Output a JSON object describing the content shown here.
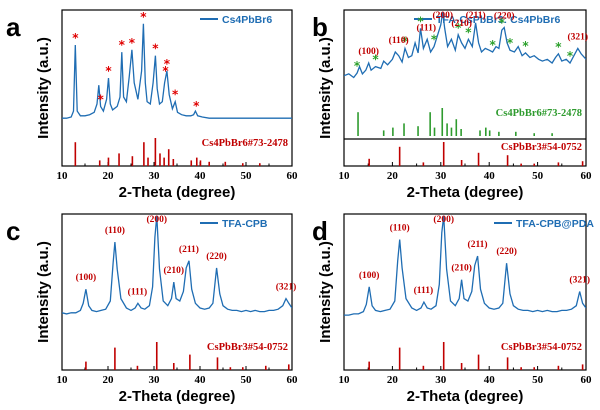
{
  "chart_data": [
    {
      "panel": "a",
      "type": "line",
      "xlabel": "2-Theta (degree)",
      "ylabel": "Intensity (a.u.)",
      "xlim": [
        10,
        60
      ],
      "xticks": [
        10,
        20,
        30,
        40,
        50,
        60
      ],
      "series": [
        {
          "name": "Cs4PbBr6",
          "color": "#1f6db3",
          "x": [
            10,
            11,
            12,
            12.5,
            12.9,
            13.3,
            14,
            15,
            16,
            17,
            17.6,
            18,
            18.4,
            19,
            19.7,
            20.1,
            20.5,
            21,
            22,
            22.6,
            23,
            23.4,
            24,
            24.6,
            25.2,
            25.7,
            26.5,
            27.3,
            27.7,
            28.1,
            28.5,
            29.2,
            29.8,
            30.3,
            30.7,
            31.2,
            31.8,
            32.3,
            32.8,
            33.3,
            34,
            34.6,
            35.1,
            36,
            37,
            38,
            38.6,
            39,
            39.5,
            40.5,
            42,
            44,
            46,
            48,
            50,
            52,
            54,
            56,
            58,
            60
          ],
          "y": [
            0.1,
            0.1,
            0.11,
            0.16,
            0.72,
            0.16,
            0.12,
            0.12,
            0.13,
            0.15,
            0.22,
            0.38,
            0.2,
            0.16,
            0.26,
            0.44,
            0.22,
            0.17,
            0.2,
            0.28,
            0.66,
            0.28,
            0.24,
            0.45,
            0.68,
            0.4,
            0.26,
            0.5,
            0.9,
            0.4,
            0.24,
            0.22,
            0.4,
            0.63,
            0.35,
            0.22,
            0.24,
            0.4,
            0.5,
            0.3,
            0.18,
            0.24,
            0.15,
            0.13,
            0.12,
            0.12,
            0.13,
            0.16,
            0.12,
            0.11,
            0.1,
            0.1,
            0.1,
            0.1,
            0.1,
            0.1,
            0.1,
            0.1,
            0.1,
            0.1
          ]
        }
      ],
      "star_markers": {
        "color": "#e00000",
        "x": [
          12.9,
          18.4,
          20.1,
          23.0,
          25.2,
          27.7,
          30.3,
          32.8,
          32.5,
          34.6,
          39.2
        ]
      },
      "reference": {
        "label": "Cs4PbBr6#73-2478",
        "color": "#c00000",
        "x": [
          12.9,
          18.2,
          20.1,
          22.4,
          25.3,
          27.8,
          28.7,
          30.3,
          31.3,
          32.2,
          33.2,
          34.2,
          38.1,
          39.3,
          40.1,
          42.0,
          45.5,
          49.3,
          53.0
        ],
        "intensity": [
          0.85,
          0.2,
          0.3,
          0.45,
          0.35,
          0.85,
          0.3,
          1.0,
          0.45,
          0.3,
          0.6,
          0.25,
          0.2,
          0.3,
          0.2,
          0.15,
          0.15,
          0.1,
          0.1
        ]
      }
    },
    {
      "panel": "b",
      "type": "line",
      "xlabel": "2-Theta (degree)",
      "ylabel": "Intensity (a.u.)",
      "xlim": [
        10,
        60
      ],
      "xticks": [
        10,
        20,
        30,
        40,
        50,
        60
      ],
      "series": [
        {
          "name": "TFA-CsPbBr3: Cs4PbBr6",
          "color": "#1f6db3",
          "x": [
            10,
            11,
            12,
            12.7,
            13.2,
            13.8,
            14.5,
            15.1,
            15.6,
            16.5,
            17.6,
            18.2,
            19,
            20,
            20.6,
            21.3,
            22,
            22.6,
            23.3,
            24,
            24.7,
            25.3,
            25.8,
            26.4,
            27.2,
            27.9,
            28.6,
            29.3,
            30,
            30.4,
            30.8,
            31.4,
            32.2,
            33,
            33.6,
            34.3,
            35,
            35.7,
            36.5,
            37.2,
            37.8,
            38.4,
            39.2,
            40,
            40.7,
            41.4,
            42,
            42.6,
            43.1,
            43.7,
            44.3,
            45.2,
            46,
            46.8,
            47.5,
            48.4,
            49.3,
            50.2,
            51,
            52,
            53,
            53.7,
            54.3,
            55,
            55.9,
            56.7,
            57.5,
            58.3,
            59,
            59.7,
            60
          ],
          "y": [
            0.3,
            0.32,
            0.28,
            0.33,
            0.4,
            0.32,
            0.36,
            0.44,
            0.36,
            0.4,
            0.38,
            0.46,
            0.42,
            0.48,
            0.56,
            0.52,
            0.45,
            0.6,
            0.5,
            0.52,
            0.66,
            0.55,
            0.82,
            0.6,
            0.7,
            0.56,
            0.62,
            0.74,
            0.86,
            1.0,
            0.82,
            0.62,
            0.7,
            0.58,
            0.75,
            0.66,
            0.6,
            0.7,
            0.62,
            0.88,
            0.66,
            0.56,
            0.6,
            0.58,
            0.56,
            0.62,
            0.6,
            0.8,
            0.83,
            0.66,
            0.58,
            0.56,
            0.62,
            0.52,
            0.55,
            0.5,
            0.52,
            0.48,
            0.46,
            0.48,
            0.44,
            0.5,
            0.54,
            0.46,
            0.48,
            0.44,
            0.52,
            0.6,
            0.54,
            0.5,
            0.48
          ]
        }
      ],
      "miller_labels": [
        {
          "x": 15.1,
          "text": "(100)"
        },
        {
          "x": 21.3,
          "text": "(110)"
        },
        {
          "x": 27.0,
          "text": "(111)"
        },
        {
          "x": 30.4,
          "text": "(200)"
        },
        {
          "x": 34.3,
          "text": "(210)"
        },
        {
          "x": 37.2,
          "text": "(211)"
        },
        {
          "x": 43.1,
          "text": "(220)"
        },
        {
          "x": 58.3,
          "text": "(321)"
        }
      ],
      "star_markers": {
        "color": "#2ca02c",
        "x": [
          12.7,
          16.5,
          22.6,
          25.8,
          28.6,
          33.6,
          35.7,
          40.7,
          42.6,
          44.3,
          47.5,
          54.3,
          56.7
        ]
      },
      "reference": [
        {
          "label": "Cs4PbBr6#73-2478",
          "color": "#2e9b2e",
          "x": [
            12.9,
            18.2,
            20.1,
            22.4,
            25.3,
            27.8,
            28.7,
            30.3,
            31.3,
            32.2,
            33.2,
            34.2,
            38.1,
            39.3,
            40.1,
            42.0,
            45.5,
            49.3,
            53.0
          ],
          "intensity": [
            0.85,
            0.2,
            0.3,
            0.45,
            0.35,
            0.85,
            0.3,
            1.0,
            0.45,
            0.3,
            0.6,
            0.25,
            0.2,
            0.3,
            0.2,
            0.15,
            0.15,
            0.1,
            0.1
          ]
        },
        {
          "label": "CsPbBr3#54-0752",
          "color": "#c00000",
          "x": [
            15.2,
            21.5,
            26.4,
            30.6,
            34.3,
            37.8,
            43.8,
            46.6,
            49.3,
            54.3,
            59.3
          ],
          "intensity": [
            0.3,
            0.8,
            0.15,
            1.0,
            0.25,
            0.55,
            0.45,
            0.1,
            0.1,
            0.15,
            0.2
          ]
        }
      ]
    },
    {
      "panel": "c",
      "type": "line",
      "xlabel": "2-Theta (degree)",
      "ylabel": "Intensity (a.u.)",
      "xlim": [
        10,
        60
      ],
      "xticks": [
        10,
        20,
        30,
        40,
        50,
        60
      ],
      "series": [
        {
          "name": "TFA-CPB",
          "color": "#1f6db3",
          "x": [
            10,
            11,
            12,
            13,
            14,
            14.6,
            15.2,
            15.8,
            16.5,
            17.5,
            18.5,
            19.5,
            20.5,
            21.1,
            21.5,
            22,
            22.8,
            24,
            25,
            25.9,
            26.5,
            27.2,
            28,
            29,
            29.7,
            30.2,
            30.6,
            31.2,
            32,
            33,
            33.8,
            34.3,
            34.8,
            35.6,
            36.4,
            37,
            37.6,
            38.2,
            39,
            40,
            41,
            42,
            42.8,
            43.6,
            44.3,
            45,
            46,
            47,
            48,
            49,
            50,
            51,
            52,
            53,
            54,
            55,
            56,
            57,
            58,
            58.7,
            59.3,
            60
          ],
          "y": [
            0.18,
            0.17,
            0.18,
            0.18,
            0.2,
            0.26,
            0.38,
            0.24,
            0.2,
            0.19,
            0.2,
            0.21,
            0.28,
            0.6,
            0.78,
            0.55,
            0.3,
            0.22,
            0.2,
            0.22,
            0.26,
            0.22,
            0.21,
            0.24,
            0.4,
            0.82,
            1.0,
            0.55,
            0.28,
            0.24,
            0.3,
            0.44,
            0.3,
            0.28,
            0.36,
            0.56,
            0.62,
            0.38,
            0.26,
            0.22,
            0.21,
            0.22,
            0.26,
            0.56,
            0.34,
            0.24,
            0.21,
            0.2,
            0.2,
            0.19,
            0.2,
            0.19,
            0.2,
            0.19,
            0.19,
            0.2,
            0.2,
            0.21,
            0.24,
            0.3,
            0.26,
            0.22
          ]
        }
      ],
      "miller_labels": [
        {
          "x": 15.2,
          "text": "(100)"
        },
        {
          "x": 21.5,
          "text": "(110)"
        },
        {
          "x": 26.4,
          "text": "(111)"
        },
        {
          "x": 30.6,
          "text": "(200)"
        },
        {
          "x": 34.3,
          "text": "(210)"
        },
        {
          "x": 37.6,
          "text": "(211)"
        },
        {
          "x": 43.6,
          "text": "(220)"
        },
        {
          "x": 58.7,
          "text": "(321)"
        }
      ],
      "reference": {
        "label": "CsPbBr3#54-0752",
        "color": "#c00000",
        "x": [
          15.2,
          21.5,
          26.4,
          30.6,
          34.3,
          37.8,
          43.8,
          46.6,
          49.3,
          54.3,
          59.3
        ],
        "intensity": [
          0.3,
          0.8,
          0.15,
          1.0,
          0.25,
          0.55,
          0.45,
          0.1,
          0.1,
          0.15,
          0.2
        ]
      }
    },
    {
      "panel": "d",
      "type": "line",
      "xlabel": "2-Theta (degree)",
      "ylabel": "Intensity (a.u.)",
      "xlim": [
        10,
        60
      ],
      "xticks": [
        10,
        20,
        30,
        40,
        50,
        60
      ],
      "series": [
        {
          "name": "TFA-CPB@PDA",
          "color": "#1f6db3",
          "x": [
            10,
            11,
            12,
            13,
            14,
            14.6,
            15.2,
            15.8,
            16.5,
            17.5,
            18.5,
            19.5,
            20.5,
            21.1,
            21.5,
            22,
            22.8,
            24,
            25,
            25.9,
            26.5,
            27.2,
            28,
            29,
            29.7,
            30.2,
            30.6,
            31.2,
            32,
            33,
            33.8,
            34.3,
            34.8,
            35.6,
            36.4,
            37,
            37.6,
            38.2,
            39,
            40,
            41,
            42,
            42.8,
            43.6,
            44.3,
            45,
            46,
            47,
            48,
            49,
            50,
            51,
            52,
            53,
            54,
            55,
            56,
            57,
            58,
            58.7,
            59.3,
            60
          ],
          "y": [
            0.16,
            0.16,
            0.17,
            0.17,
            0.19,
            0.25,
            0.4,
            0.24,
            0.2,
            0.19,
            0.2,
            0.21,
            0.28,
            0.62,
            0.8,
            0.56,
            0.3,
            0.22,
            0.2,
            0.22,
            0.27,
            0.22,
            0.21,
            0.24,
            0.42,
            0.86,
            1.0,
            0.55,
            0.28,
            0.24,
            0.3,
            0.46,
            0.3,
            0.28,
            0.36,
            0.58,
            0.66,
            0.38,
            0.26,
            0.22,
            0.21,
            0.22,
            0.26,
            0.6,
            0.34,
            0.24,
            0.21,
            0.2,
            0.2,
            0.19,
            0.2,
            0.19,
            0.2,
            0.19,
            0.19,
            0.2,
            0.2,
            0.21,
            0.24,
            0.36,
            0.26,
            0.22
          ]
        }
      ],
      "miller_labels": [
        {
          "x": 15.2,
          "text": "(100)"
        },
        {
          "x": 21.5,
          "text": "(110)"
        },
        {
          "x": 26.4,
          "text": "(111)"
        },
        {
          "x": 30.6,
          "text": "(200)"
        },
        {
          "x": 34.3,
          "text": "(210)"
        },
        {
          "x": 37.6,
          "text": "(211)"
        },
        {
          "x": 43.6,
          "text": "(220)"
        },
        {
          "x": 58.7,
          "text": "(321)"
        }
      ],
      "reference": {
        "label": "CsPbBr3#54-0752",
        "color": "#c00000",
        "x": [
          15.2,
          21.5,
          26.4,
          30.6,
          34.3,
          37.8,
          43.8,
          46.6,
          49.3,
          54.3,
          59.3
        ],
        "intensity": [
          0.3,
          0.8,
          0.15,
          1.0,
          0.25,
          0.55,
          0.45,
          0.1,
          0.1,
          0.15,
          0.2
        ]
      }
    }
  ]
}
